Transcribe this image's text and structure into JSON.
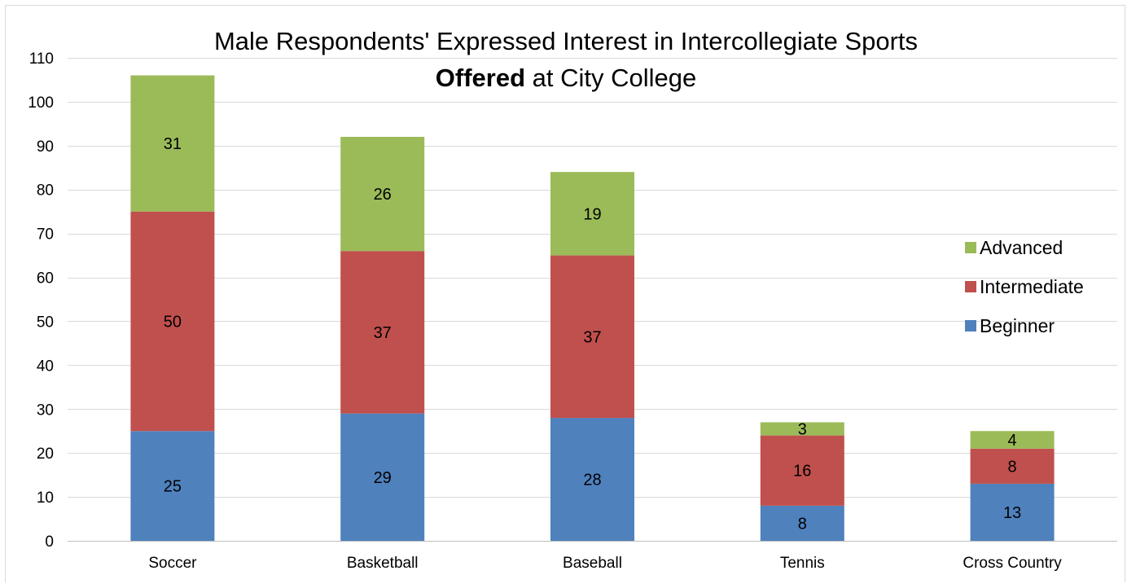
{
  "chart_data": {
    "type": "bar",
    "stacked": true,
    "title_part1": "Male Respondents' Expressed Interest in Intercollegiate Sports",
    "title_bold": "Offered",
    "title_part2": " at City College",
    "xlabel": "",
    "ylabel": "",
    "ylim": [
      0,
      110
    ],
    "yticks": [
      0,
      10,
      20,
      30,
      40,
      50,
      60,
      70,
      80,
      90,
      100,
      110
    ],
    "grid": true,
    "legend_position": "right",
    "categories": [
      "Soccer",
      "Basketball",
      "Baseball",
      "Tennis",
      "Cross Country"
    ],
    "series": [
      {
        "name": "Beginner",
        "color": "#4f81bd",
        "values": [
          25,
          29,
          28,
          8,
          13
        ]
      },
      {
        "name": "Intermediate",
        "color": "#c0504d",
        "values": [
          50,
          37,
          37,
          16,
          8
        ]
      },
      {
        "name": "Advanced",
        "color": "#9bbb59",
        "values": [
          31,
          26,
          19,
          3,
          4
        ]
      }
    ]
  }
}
